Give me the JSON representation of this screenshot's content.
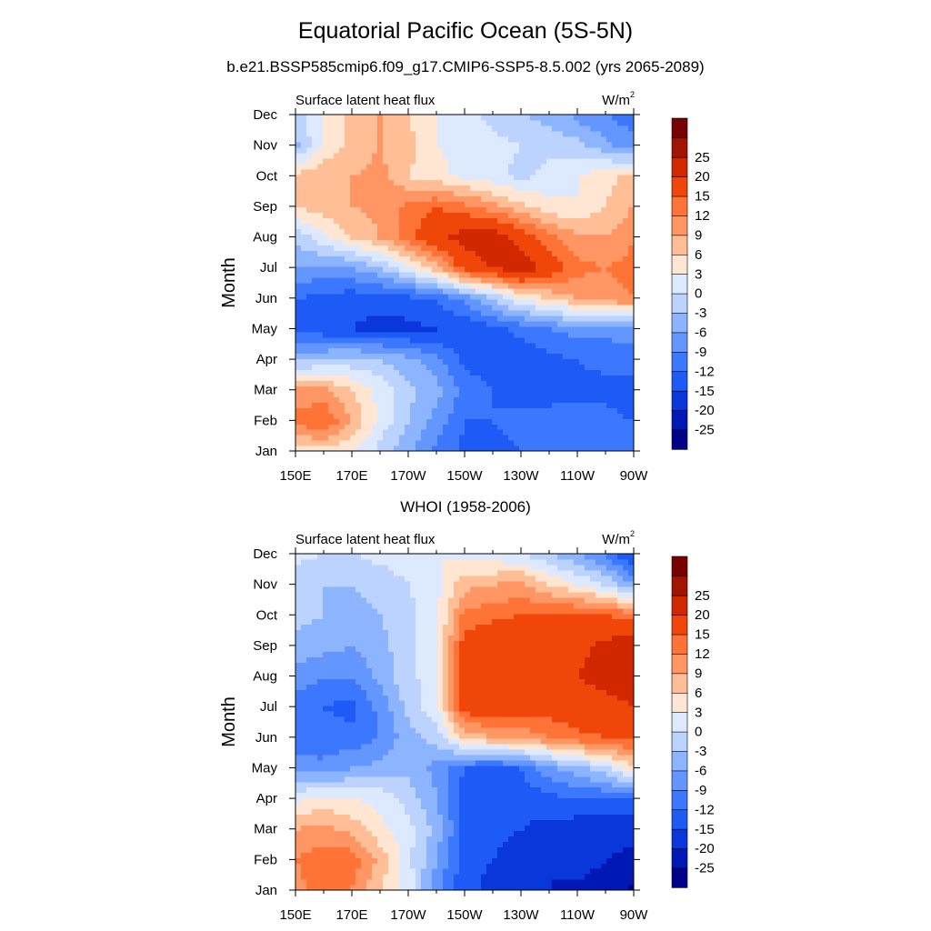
{
  "figure": {
    "title": "Equatorial Pacific Ocean (5S-5N)",
    "subtitle": "b.e21.BSSP585cmip6.f09_g17.CMIP6-SSP5-8.5.002 (yrs 2065-2089)",
    "panel2_title": "WHOI (1958-2006)"
  },
  "chart_data": [
    {
      "type": "heatmap",
      "title": "b.e21.BSSP585cmip6.f09_g17.CMIP6-SSP5-8.5.002 (yrs 2065-2089)",
      "left_label": "Surface latent heat flux",
      "units": "W/m2",
      "ylabel": "Month",
      "xlabel": "",
      "x_ticks": [
        "150E",
        "170E",
        "170W",
        "150W",
        "130W",
        "110W",
        "90W"
      ],
      "y_ticks": [
        "Jan",
        "Feb",
        "Mar",
        "Apr",
        "May",
        "Jun",
        "Jul",
        "Aug",
        "Sep",
        "Oct",
        "Nov",
        "Dec"
      ],
      "levels": [
        -25,
        -20,
        -15,
        -12,
        -9,
        -6,
        -3,
        0,
        3,
        6,
        9,
        12,
        15,
        20,
        25
      ],
      "colors": [
        "#00008a",
        "#0019b4",
        "#0a37dc",
        "#1e5af5",
        "#3c78ff",
        "#6496ff",
        "#8cb4ff",
        "#bcd2ff",
        "#dce9ff",
        "#ffe6d2",
        "#ffbe96",
        "#ff9664",
        "#ff7337",
        "#f0460a",
        "#d22800",
        "#a01400",
        "#780000"
      ],
      "x": [
        150,
        160,
        170,
        180,
        190,
        200,
        210,
        220,
        230,
        240,
        250,
        260,
        270
      ],
      "y": [
        1,
        2,
        3,
        4,
        5,
        6,
        7,
        8,
        9,
        10,
        11,
        12
      ],
      "z": [
        [
          5,
          5,
          3,
          -1,
          -5,
          -10,
          -13,
          -13,
          -12,
          -10,
          -9,
          -10,
          -11
        ],
        [
          13,
          15,
          9,
          2,
          -3,
          -7,
          -12,
          -12,
          -11,
          -10,
          -10,
          -11,
          -12
        ],
        [
          10,
          10,
          6,
          2,
          -2,
          -5,
          -10,
          -12,
          -13,
          -14,
          -13,
          -13,
          -14
        ],
        [
          -4,
          -3,
          -2,
          -3,
          -5,
          -8,
          -13,
          -14,
          -14,
          -13,
          -12,
          -11,
          -10
        ],
        [
          -13,
          -14,
          -15,
          -16,
          -16,
          -15,
          -15,
          -13,
          -11,
          -9,
          -8,
          -8,
          -8
        ],
        [
          -12,
          -13,
          -14,
          -14,
          -13,
          -12,
          -8,
          -3,
          3,
          6,
          9,
          11,
          12
        ],
        [
          -6,
          -7,
          -6,
          -3,
          2,
          8,
          17,
          20,
          24,
          18,
          13,
          12,
          13
        ],
        [
          -2,
          2,
          6,
          9,
          14,
          18,
          22,
          23,
          18,
          13,
          10,
          9,
          12
        ],
        [
          6,
          8,
          9,
          10,
          13,
          15,
          13,
          10,
          7,
          4,
          3,
          6,
          9
        ],
        [
          7,
          8,
          9,
          10,
          6,
          4,
          2,
          1,
          -1,
          1,
          3,
          5,
          7
        ],
        [
          -4,
          4,
          7,
          9,
          7,
          3,
          2,
          1,
          0,
          -1,
          -2,
          -5,
          -8
        ],
        [
          -2,
          3,
          7,
          9,
          6,
          3,
          1,
          -1,
          -3,
          -4,
          -7,
          -9,
          -11
        ]
      ]
    },
    {
      "type": "heatmap",
      "title": "WHOI (1958-2006)",
      "left_label": "Surface latent heat flux",
      "units": "W/m2",
      "ylabel": "Month",
      "xlabel": "",
      "x_ticks": [
        "150E",
        "170E",
        "170W",
        "150W",
        "130W",
        "110W",
        "90W"
      ],
      "y_ticks": [
        "Jan",
        "Feb",
        "Mar",
        "Apr",
        "May",
        "Jun",
        "Jul",
        "Aug",
        "Sep",
        "Oct",
        "Nov",
        "Dec"
      ],
      "levels": [
        -25,
        -20,
        -15,
        -12,
        -9,
        -6,
        -3,
        0,
        3,
        6,
        9,
        12,
        15,
        20,
        25
      ],
      "colors": [
        "#00008a",
        "#0019b4",
        "#0a37dc",
        "#1e5af5",
        "#3c78ff",
        "#6496ff",
        "#8cb4ff",
        "#bcd2ff",
        "#dce9ff",
        "#ffe6d2",
        "#ffbe96",
        "#ff9664",
        "#ff7337",
        "#f0460a",
        "#d22800",
        "#a01400",
        "#780000"
      ],
      "x": [
        150,
        160,
        170,
        180,
        190,
        200,
        210,
        220,
        230,
        240,
        250,
        260,
        270
      ],
      "y": [
        1,
        2,
        3,
        4,
        5,
        6,
        7,
        8,
        9,
        10,
        11,
        12
      ],
      "z": [
        [
          11,
          13,
          12,
          6,
          2,
          -8,
          -14,
          -16,
          -18,
          -20,
          -21,
          -22,
          -26
        ],
        [
          12,
          14,
          14,
          8,
          1,
          -6,
          -14,
          -15,
          -17,
          -20,
          -18,
          -20,
          -22
        ],
        [
          9,
          10,
          8,
          4,
          1,
          -4,
          -13,
          -14,
          -15,
          -16,
          -17,
          -17,
          -18
        ],
        [
          2,
          4,
          3,
          2,
          -1,
          -6,
          -14,
          -14,
          -14,
          -13,
          -12,
          -12,
          -12
        ],
        [
          -7,
          -8,
          -6,
          -5,
          -4,
          -7,
          -12,
          -13,
          -12,
          -7,
          -4,
          -1,
          6
        ],
        [
          -12,
          -11,
          -11,
          -9,
          -4,
          -2,
          7,
          9,
          10,
          12,
          14,
          15,
          16
        ],
        [
          -11,
          -12,
          -13,
          -8,
          -2,
          2,
          17,
          18,
          17,
          17,
          18,
          19,
          20
        ],
        [
          -7,
          -9,
          -9,
          -5,
          -1,
          2,
          17,
          19,
          20,
          18,
          20,
          21,
          22
        ],
        [
          -4,
          -5,
          -6,
          -4,
          -1,
          2,
          17,
          19,
          20,
          18,
          19,
          21,
          24
        ],
        [
          -2,
          -3,
          -4,
          -3,
          -1,
          2,
          13,
          14,
          15,
          16,
          16,
          15,
          14
        ],
        [
          -2,
          -3,
          -3,
          -2,
          0,
          2,
          8,
          9,
          10,
          6,
          3,
          0,
          -6
        ],
        [
          1,
          0,
          0,
          1,
          2,
          3,
          2,
          1,
          0,
          -3,
          -6,
          -10,
          -16
        ]
      ]
    }
  ]
}
